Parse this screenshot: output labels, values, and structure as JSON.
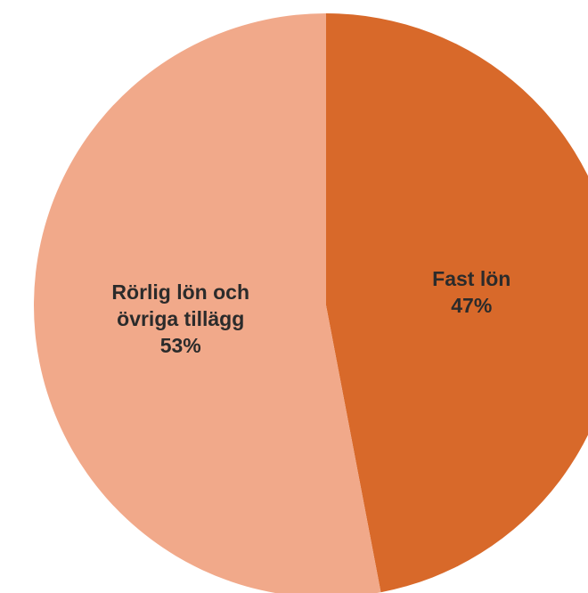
{
  "chart_data": {
    "type": "pie",
    "categories": [
      "Fast lön",
      "Rörlig lön och övriga tillägg"
    ],
    "values": [
      47,
      53
    ],
    "value_labels": [
      "47%",
      "53%"
    ],
    "colors": [
      "#d8692a",
      "#f1a98a"
    ]
  }
}
